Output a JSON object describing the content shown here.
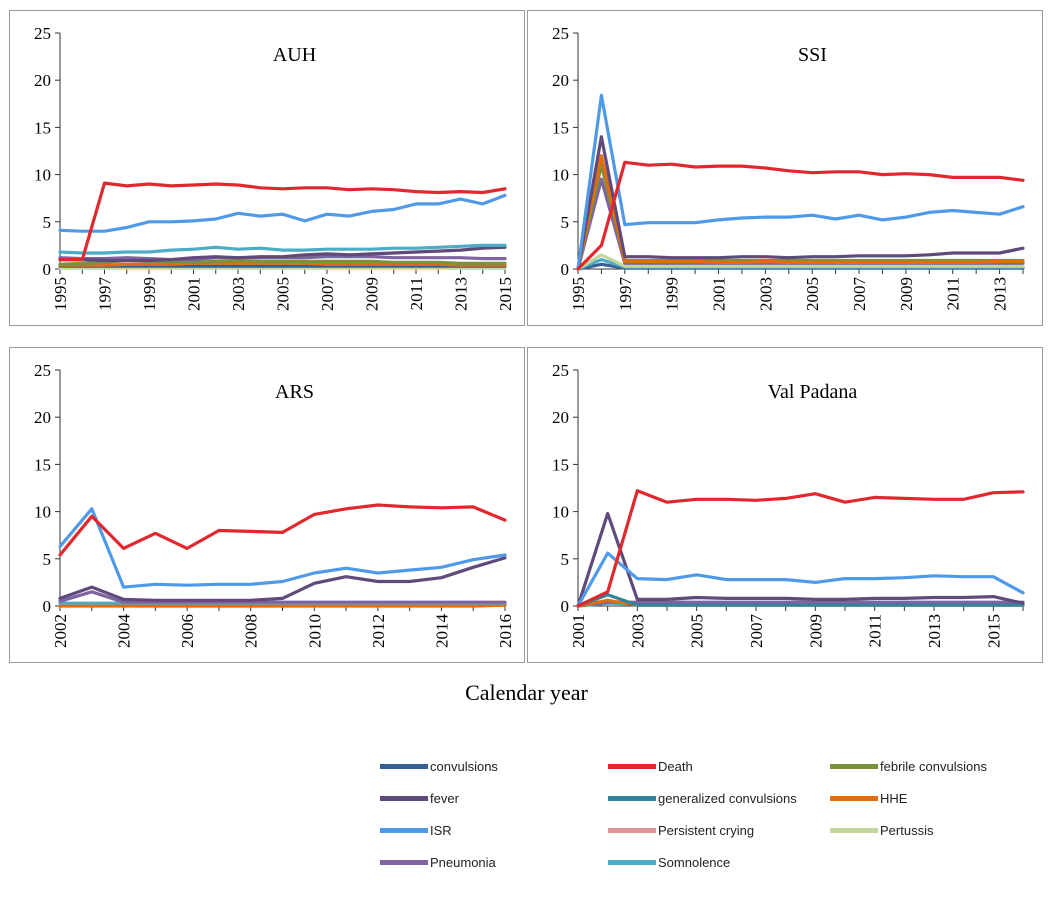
{
  "colors": {
    "convulsions": "#376092",
    "Death": "#e0282e",
    "febrile convulsions": "#77933c",
    "fever": "#604a7b",
    "generalized convulsions": "#31849b",
    "HHE": "#e46c0a",
    "ISR": "#4f9ae8",
    "Persistent crying": "#d99694",
    "Pertussis": "#c3d69b",
    "Pneumonia": "#8064a2",
    "Somnolence": "#4bacc6"
  },
  "xlabel": "Calendar year",
  "legend": [
    "convulsions",
    "Death",
    "febrile convulsions",
    "fever",
    "generalized convulsions",
    "HHE",
    "ISR",
    "Persistent crying",
    "Pertussis",
    "Pneumonia",
    "Somnolence"
  ],
  "chart_data": [
    {
      "type": "line",
      "title": "AUH",
      "ylim": [
        0,
        25
      ],
      "yticks": [
        0,
        5,
        10,
        15,
        20,
        25
      ],
      "x": [
        1995,
        1996,
        1997,
        1998,
        1999,
        2000,
        2001,
        2002,
        2003,
        2004,
        2005,
        2006,
        2007,
        2008,
        2009,
        2010,
        2011,
        2012,
        2013,
        2014,
        2015
      ],
      "xticks": [
        1995,
        1997,
        1999,
        2001,
        2003,
        2005,
        2007,
        2009,
        2011,
        2013,
        2015
      ],
      "series": [
        {
          "name": "Death",
          "values": [
            1.0,
            1.0,
            9.1,
            8.8,
            9.0,
            8.8,
            8.9,
            9.0,
            8.9,
            8.6,
            8.5,
            8.6,
            8.6,
            8.4,
            8.5,
            8.4,
            8.2,
            8.1,
            8.2,
            8.1,
            8.5
          ]
        },
        {
          "name": "ISR",
          "values": [
            4.1,
            4.0,
            4.0,
            4.4,
            5.0,
            5.0,
            5.1,
            5.3,
            5.9,
            5.6,
            5.8,
            5.1,
            5.8,
            5.6,
            6.1,
            6.3,
            6.9,
            6.9,
            7.4,
            6.9,
            7.8
          ]
        },
        {
          "name": "Somnolence",
          "values": [
            1.8,
            1.7,
            1.7,
            1.8,
            1.8,
            2.0,
            2.1,
            2.3,
            2.1,
            2.2,
            2.0,
            2.0,
            2.1,
            2.1,
            2.1,
            2.2,
            2.2,
            2.3,
            2.4,
            2.5,
            2.5
          ]
        },
        {
          "name": "fever",
          "values": [
            1.0,
            1.0,
            0.9,
            0.9,
            0.9,
            1.0,
            1.2,
            1.3,
            1.2,
            1.3,
            1.3,
            1.5,
            1.6,
            1.5,
            1.6,
            1.7,
            1.8,
            1.9,
            2.0,
            2.2,
            2.3
          ]
        },
        {
          "name": "Pneumonia",
          "values": [
            1.2,
            1.1,
            1.1,
            1.2,
            1.1,
            1.0,
            1.0,
            1.2,
            1.2,
            1.2,
            1.2,
            1.2,
            1.3,
            1.3,
            1.3,
            1.2,
            1.2,
            1.2,
            1.2,
            1.1,
            1.1
          ]
        },
        {
          "name": "febrile convulsions",
          "values": [
            0.5,
            0.6,
            0.7,
            0.9,
            0.8,
            0.7,
            0.7,
            0.8,
            0.9,
            0.8,
            0.8,
            0.8,
            0.8,
            0.8,
            0.8,
            0.7,
            0.7,
            0.7,
            0.6,
            0.6,
            0.6
          ]
        },
        {
          "name": "HHE",
          "values": [
            0.4,
            0.4,
            0.4,
            0.5,
            0.5,
            0.5,
            0.6,
            0.6,
            0.6,
            0.6,
            0.6,
            0.6,
            0.5,
            0.5,
            0.5,
            0.5,
            0.5,
            0.5,
            0.4,
            0.4,
            0.4
          ]
        },
        {
          "name": "convulsions",
          "values": [
            0.3,
            0.3,
            0.3,
            0.3,
            0.3,
            0.3,
            0.3,
            0.3,
            0.3,
            0.3,
            0.3,
            0.3,
            0.3,
            0.3,
            0.3,
            0.3,
            0.3,
            0.3,
            0.3,
            0.3,
            0.3
          ]
        },
        {
          "name": "Pertussis",
          "values": [
            0.1,
            0.1,
            0.1,
            0.1,
            0.1,
            0.1,
            0.1,
            0.1,
            0.1,
            0.1,
            0.1,
            0.1,
            0.1,
            0.1,
            0.1,
            0.1,
            0.1,
            0.1,
            0.1,
            0.1,
            0.1
          ]
        }
      ]
    },
    {
      "type": "line",
      "title": "SSI",
      "ylim": [
        0,
        25
      ],
      "yticks": [
        0,
        5,
        10,
        15,
        20,
        25
      ],
      "x": [
        1995,
        1996,
        1997,
        1998,
        1999,
        2000,
        2001,
        2002,
        2003,
        2004,
        2005,
        2006,
        2007,
        2008,
        2009,
        2010,
        2011,
        2012,
        2013,
        2014
      ],
      "xticks": [
        1995,
        1997,
        1999,
        2001,
        2003,
        2005,
        2007,
        2009,
        2011,
        2013
      ],
      "series": [
        {
          "name": "Death",
          "values": [
            0.0,
            2.5,
            11.3,
            11.0,
            11.1,
            10.8,
            10.9,
            10.9,
            10.7,
            10.4,
            10.2,
            10.3,
            10.3,
            10.0,
            10.1,
            10.0,
            9.7,
            9.7,
            9.7,
            9.4
          ]
        },
        {
          "name": "ISR",
          "values": [
            0.0,
            18.4,
            4.7,
            4.9,
            4.9,
            4.9,
            5.2,
            5.4,
            5.5,
            5.5,
            5.7,
            5.3,
            5.7,
            5.2,
            5.5,
            6.0,
            6.2,
            6.0,
            5.8,
            6.6
          ]
        },
        {
          "name": "fever",
          "values": [
            0.0,
            14.0,
            1.3,
            1.3,
            1.2,
            1.2,
            1.2,
            1.3,
            1.3,
            1.2,
            1.3,
            1.3,
            1.4,
            1.4,
            1.4,
            1.5,
            1.7,
            1.7,
            1.7,
            2.2
          ]
        },
        {
          "name": "HHE",
          "values": [
            0.0,
            12.0,
            0.8,
            0.8,
            0.8,
            0.8,
            0.7,
            0.7,
            0.8,
            0.7,
            0.7,
            0.7,
            0.7,
            0.7,
            0.7,
            0.7,
            0.7,
            0.7,
            0.8,
            0.8
          ]
        },
        {
          "name": "febrile convulsions",
          "values": [
            0.0,
            11.0,
            0.9,
            0.9,
            0.9,
            0.9,
            0.9,
            0.9,
            0.9,
            0.9,
            0.9,
            0.9,
            0.9,
            0.9,
            0.9,
            0.9,
            0.9,
            0.9,
            0.9,
            0.9
          ]
        },
        {
          "name": "Pneumonia",
          "values": [
            0.0,
            9.5,
            0.6,
            0.6,
            0.6,
            0.6,
            0.6,
            0.6,
            0.6,
            0.6,
            0.6,
            0.6,
            0.6,
            0.6,
            0.6,
            0.6,
            0.6,
            0.6,
            0.6,
            0.6
          ]
        },
        {
          "name": "Pertussis",
          "values": [
            0.0,
            1.5,
            0.3,
            0.3,
            0.3,
            0.3,
            0.3,
            0.3,
            0.3,
            0.3,
            0.3,
            0.3,
            0.3,
            0.3,
            0.3,
            0.3,
            0.3,
            0.3,
            0.3,
            0.3
          ]
        },
        {
          "name": "Somnolence",
          "values": [
            0.0,
            1.0,
            0.2,
            0.2,
            0.2,
            0.2,
            0.2,
            0.2,
            0.2,
            0.2,
            0.2,
            0.2,
            0.2,
            0.2,
            0.2,
            0.2,
            0.2,
            0.2,
            0.2,
            0.2
          ]
        },
        {
          "name": "convulsions",
          "values": [
            0.0,
            0.5,
            0.1,
            0.1,
            0.1,
            0.1,
            0.1,
            0.1,
            0.1,
            0.1,
            0.1,
            0.1,
            0.1,
            0.1,
            0.1,
            0.1,
            0.1,
            0.1,
            0.1,
            0.1
          ]
        }
      ]
    },
    {
      "type": "line",
      "title": "ARS",
      "ylim": [
        0,
        25
      ],
      "yticks": [
        0,
        5,
        10,
        15,
        20,
        25
      ],
      "x": [
        2002,
        2003,
        2004,
        2005,
        2006,
        2007,
        2008,
        2009,
        2010,
        2011,
        2012,
        2013,
        2014,
        2015,
        2016
      ],
      "xticks": [
        2002,
        2004,
        2006,
        2008,
        2010,
        2012,
        2014,
        2016
      ],
      "series": [
        {
          "name": "Death",
          "values": [
            5.4,
            9.5,
            6.1,
            7.7,
            6.1,
            8.0,
            7.9,
            7.8,
            9.7,
            10.3,
            10.7,
            10.5,
            10.4,
            10.5,
            9.1
          ]
        },
        {
          "name": "ISR",
          "values": [
            6.3,
            10.3,
            2.0,
            2.3,
            2.2,
            2.3,
            2.3,
            2.6,
            3.5,
            4.0,
            3.5,
            3.8,
            4.1,
            4.9,
            5.4
          ]
        },
        {
          "name": "fever",
          "values": [
            0.8,
            2.0,
            0.7,
            0.6,
            0.6,
            0.6,
            0.6,
            0.8,
            2.4,
            3.1,
            2.6,
            2.6,
            3.0,
            4.1,
            5.1
          ]
        },
        {
          "name": "Pneumonia",
          "values": [
            0.5,
            1.5,
            0.4,
            0.4,
            0.4,
            0.4,
            0.4,
            0.4,
            0.4,
            0.4,
            0.4,
            0.4,
            0.4,
            0.4,
            0.4
          ]
        },
        {
          "name": "Somnolence",
          "values": [
            0.3,
            0.3,
            0.3,
            0.3,
            0.3,
            0.3,
            0.3,
            0.3,
            0.3,
            0.3,
            0.3,
            0.3,
            0.3,
            0.3,
            0.3
          ]
        },
        {
          "name": "HHE",
          "values": [
            0.0,
            0.0,
            0.0,
            0.0,
            0.0,
            0.0,
            0.0,
            0.0,
            0.0,
            0.0,
            0.0,
            0.0,
            0.0,
            0.0,
            0.1
          ]
        }
      ]
    },
    {
      "type": "line",
      "title": "Val Padana",
      "ylim": [
        0,
        25
      ],
      "yticks": [
        0,
        5,
        10,
        15,
        20,
        25
      ],
      "x": [
        2001,
        2002,
        2003,
        2004,
        2005,
        2006,
        2007,
        2008,
        2009,
        2010,
        2011,
        2012,
        2013,
        2014,
        2015,
        2016
      ],
      "xticks": [
        2001,
        2003,
        2005,
        2007,
        2009,
        2011,
        2013,
        2015
      ],
      "series": [
        {
          "name": "Death",
          "values": [
            0.0,
            1.5,
            12.2,
            11.0,
            11.3,
            11.3,
            11.2,
            11.4,
            11.9,
            11.0,
            11.5,
            11.4,
            11.3,
            11.3,
            12.0,
            12.1
          ]
        },
        {
          "name": "ISR",
          "values": [
            0.0,
            5.6,
            2.9,
            2.8,
            3.3,
            2.8,
            2.8,
            2.8,
            2.5,
            2.9,
            2.9,
            3.0,
            3.2,
            3.1,
            3.1,
            1.4
          ]
        },
        {
          "name": "fever",
          "values": [
            0.0,
            9.8,
            0.7,
            0.7,
            0.9,
            0.8,
            0.8,
            0.8,
            0.7,
            0.7,
            0.8,
            0.8,
            0.9,
            0.9,
            1.0,
            0.3
          ]
        },
        {
          "name": "generalized convulsions",
          "values": [
            0.0,
            1.2,
            0.1,
            0.1,
            0.1,
            0.1,
            0.1,
            0.1,
            0.1,
            0.1,
            0.1,
            0.1,
            0.1,
            0.1,
            0.1,
            0.1
          ]
        },
        {
          "name": "HHE",
          "values": [
            0.0,
            0.6,
            0.1,
            0.1,
            0.1,
            0.1,
            0.1,
            0.1,
            0.1,
            0.1,
            0.1,
            0.1,
            0.1,
            0.1,
            0.1,
            0.1
          ]
        },
        {
          "name": "Pneumonia",
          "values": [
            0.0,
            0.4,
            0.4,
            0.4,
            0.4,
            0.4,
            0.4,
            0.4,
            0.4,
            0.4,
            0.4,
            0.4,
            0.4,
            0.4,
            0.4,
            0.4
          ]
        },
        {
          "name": "Somnolence",
          "values": [
            0.0,
            0.3,
            0.2,
            0.2,
            0.2,
            0.2,
            0.2,
            0.2,
            0.2,
            0.2,
            0.2,
            0.2,
            0.2,
            0.2,
            0.2,
            0.2
          ]
        }
      ]
    }
  ]
}
